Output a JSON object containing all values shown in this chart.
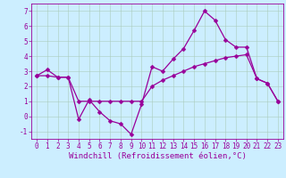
{
  "title": "",
  "xlabel": "Windchill (Refroidissement éolien,°C)",
  "bg_color": "#cceeff",
  "line_color": "#990099",
  "grid_color": "#aaccbb",
  "xlim": [
    -0.5,
    23.5
  ],
  "ylim": [
    -1.5,
    7.5
  ],
  "yticks": [
    -1,
    0,
    1,
    2,
    3,
    4,
    5,
    6,
    7
  ],
  "xticks": [
    0,
    1,
    2,
    3,
    4,
    5,
    6,
    7,
    8,
    9,
    10,
    11,
    12,
    13,
    14,
    15,
    16,
    17,
    18,
    19,
    20,
    21,
    22,
    23
  ],
  "line1_x": [
    0,
    1,
    2,
    3,
    4,
    5,
    6,
    7,
    8,
    9,
    10,
    11,
    12,
    13,
    14,
    15,
    16,
    17,
    18,
    19,
    20,
    21,
    22,
    23
  ],
  "line1_y": [
    2.7,
    3.1,
    2.6,
    2.6,
    -0.2,
    1.1,
    0.3,
    -0.3,
    -0.5,
    -1.2,
    0.8,
    3.3,
    3.0,
    3.8,
    4.5,
    5.7,
    7.0,
    6.4,
    5.1,
    4.6,
    4.6,
    2.5,
    2.2,
    1.0
  ],
  "line2_x": [
    0,
    1,
    2,
    3,
    4,
    5,
    6,
    7,
    8,
    9,
    10,
    11,
    12,
    13,
    14,
    15,
    16,
    17,
    18,
    19,
    20,
    21,
    22,
    23
  ],
  "line2_y": [
    2.7,
    2.7,
    2.6,
    2.6,
    1.0,
    1.0,
    1.0,
    1.0,
    1.0,
    1.0,
    1.0,
    2.0,
    2.4,
    2.7,
    3.0,
    3.3,
    3.5,
    3.7,
    3.9,
    4.0,
    4.1,
    2.5,
    2.2,
    1.0
  ],
  "markersize": 2.5,
  "linewidth": 0.9,
  "tick_fontsize": 5.5,
  "label_fontsize": 6.5
}
